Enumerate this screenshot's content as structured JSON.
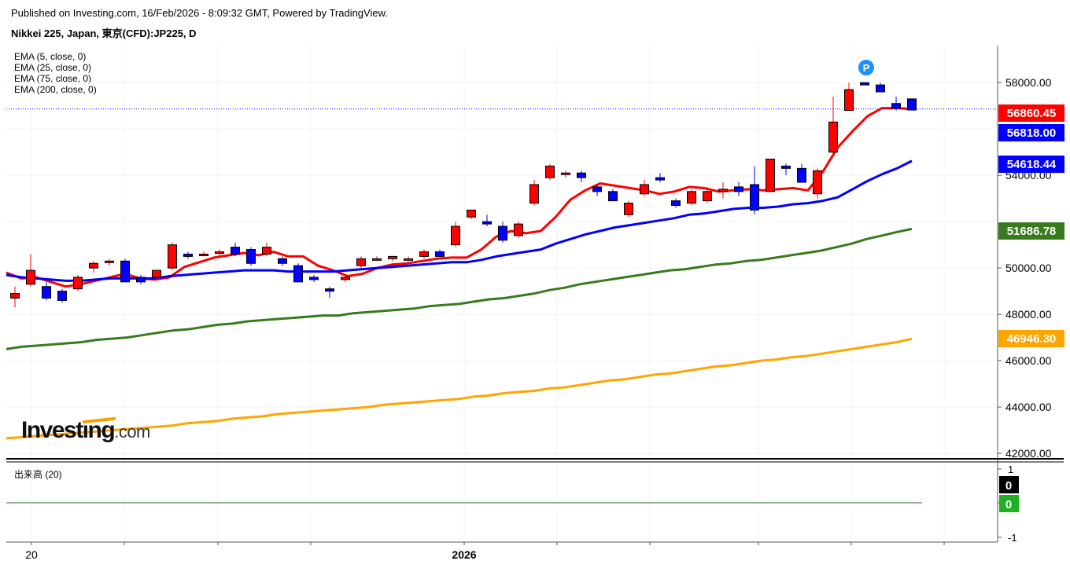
{
  "header": {
    "published": "Published on Investing.com, 16/Feb/2026 - 8:09:32 GMT, Powered by TradingView.",
    "symbol": "Nikkei 225, Japan, 東京(CFD):JP225, D"
  },
  "legend": [
    "EMA (5, close, 0)",
    "EMA (25, close, 0)",
    "EMA (75, close, 0)",
    "EMA (200, close, 0)"
  ],
  "volume_panel": {
    "title": "出来高 (20)",
    "y_ticks": [
      "1",
      "0",
      "-1"
    ],
    "badges": [
      {
        "text": "0",
        "color": "#000000"
      },
      {
        "text": "0",
        "color": "#1fb21f"
      }
    ]
  },
  "logo": {
    "main": "Investing",
    "suffix": ".com"
  },
  "marker": {
    "text": "P",
    "color": "#1e90ff"
  },
  "colors": {
    "up": "#ff0000",
    "down": "#0000ff",
    "ema5": "#ff0000",
    "ema25": "#0000ff",
    "ema75": "#3a7a1e",
    "ema200": "#ffa500",
    "price_line": "#0000ff"
  },
  "chart_data": {
    "type": "candlestick",
    "x_tick_labels": [
      "20",
      "2026"
    ],
    "y_tick_labels": [
      "58000.00",
      "54000.00",
      "50000.00",
      "48000.00",
      "46000.00",
      "44000.00",
      "42000.00"
    ],
    "ylim": [
      41800,
      59600
    ],
    "price_labels": [
      {
        "text": "56860.45",
        "value": 56860.45,
        "color": "#ff0000"
      },
      {
        "text": "56818.00",
        "value": 56818.0,
        "color": "#0000ff"
      },
      {
        "text": "54618.44",
        "value": 54618.44,
        "color": "#0000ff"
      },
      {
        "text": "51686.78",
        "value": 51686.78,
        "color": "#3a7a1e"
      },
      {
        "text": "46946.30",
        "value": 46946.3,
        "color": "#ffa500"
      }
    ],
    "current_price": 56860.45,
    "candles": [
      {
        "o": 48700,
        "h": 49200,
        "l": 48300,
        "c": 48900
      },
      {
        "o": 49300,
        "h": 50600,
        "l": 49200,
        "c": 49900
      },
      {
        "o": 49200,
        "h": 49400,
        "l": 48600,
        "c": 48700
      },
      {
        "o": 49000,
        "h": 49100,
        "l": 48500,
        "c": 48600
      },
      {
        "o": 49100,
        "h": 49700,
        "l": 49000,
        "c": 49600
      },
      {
        "o": 50000,
        "h": 50300,
        "l": 49800,
        "c": 50200
      },
      {
        "o": 50300,
        "h": 50400,
        "l": 50100,
        "c": 50300
      },
      {
        "o": 50300,
        "h": 50400,
        "l": 49400,
        "c": 49400
      },
      {
        "o": 49600,
        "h": 49700,
        "l": 49300,
        "c": 49400
      },
      {
        "o": 49600,
        "h": 49900,
        "l": 49500,
        "c": 49900
      },
      {
        "o": 50000,
        "h": 51100,
        "l": 49900,
        "c": 51000
      },
      {
        "o": 50600,
        "h": 50700,
        "l": 50400,
        "c": 50500
      },
      {
        "o": 50600,
        "h": 50700,
        "l": 50500,
        "c": 50600
      },
      {
        "o": 50700,
        "h": 50800,
        "l": 50500,
        "c": 50700
      },
      {
        "o": 50900,
        "h": 51100,
        "l": 50500,
        "c": 50600
      },
      {
        "o": 50800,
        "h": 50900,
        "l": 50100,
        "c": 50200
      },
      {
        "o": 50600,
        "h": 51100,
        "l": 50500,
        "c": 50900
      },
      {
        "o": 50400,
        "h": 50500,
        "l": 50100,
        "c": 50200
      },
      {
        "o": 50100,
        "h": 50200,
        "l": 49400,
        "c": 49400
      },
      {
        "o": 49600,
        "h": 49700,
        "l": 49400,
        "c": 49500
      },
      {
        "o": 49100,
        "h": 49200,
        "l": 48700,
        "c": 49000
      },
      {
        "o": 49500,
        "h": 49600,
        "l": 49400,
        "c": 49600
      },
      {
        "o": 50100,
        "h": 50500,
        "l": 50000,
        "c": 50400
      },
      {
        "o": 50400,
        "h": 50500,
        "l": 50300,
        "c": 50400
      },
      {
        "o": 50400,
        "h": 50500,
        "l": 50300,
        "c": 50500
      },
      {
        "o": 50400,
        "h": 50500,
        "l": 50300,
        "c": 50400
      },
      {
        "o": 50500,
        "h": 50800,
        "l": 50400,
        "c": 50700
      },
      {
        "o": 50700,
        "h": 50800,
        "l": 50500,
        "c": 50500
      },
      {
        "o": 51000,
        "h": 52000,
        "l": 50900,
        "c": 51800
      },
      {
        "o": 52200,
        "h": 52500,
        "l": 52100,
        "c": 52500
      },
      {
        "o": 52000,
        "h": 52300,
        "l": 51800,
        "c": 51900
      },
      {
        "o": 51800,
        "h": 52000,
        "l": 51100,
        "c": 51200
      },
      {
        "o": 51400,
        "h": 52000,
        "l": 51300,
        "c": 51900
      },
      {
        "o": 52800,
        "h": 53800,
        "l": 52700,
        "c": 53600
      },
      {
        "o": 53900,
        "h": 54500,
        "l": 53800,
        "c": 54400
      },
      {
        "o": 54100,
        "h": 54200,
        "l": 53900,
        "c": 54100
      },
      {
        "o": 54100,
        "h": 54200,
        "l": 53700,
        "c": 53900
      },
      {
        "o": 53500,
        "h": 53600,
        "l": 53100,
        "c": 53300
      },
      {
        "o": 53300,
        "h": 53400,
        "l": 52900,
        "c": 52900
      },
      {
        "o": 52300,
        "h": 52900,
        "l": 52200,
        "c": 52800
      },
      {
        "o": 53200,
        "h": 53800,
        "l": 53100,
        "c": 53600
      },
      {
        "o": 53900,
        "h": 54100,
        "l": 53700,
        "c": 53800
      },
      {
        "o": 52900,
        "h": 53000,
        "l": 52600,
        "c": 52700
      },
      {
        "o": 52800,
        "h": 53400,
        "l": 52700,
        "c": 53300
      },
      {
        "o": 52900,
        "h": 53500,
        "l": 52800,
        "c": 53300
      },
      {
        "o": 53300,
        "h": 53700,
        "l": 53000,
        "c": 53400
      },
      {
        "o": 53500,
        "h": 53700,
        "l": 53100,
        "c": 53300
      },
      {
        "o": 53600,
        "h": 54400,
        "l": 52300,
        "c": 52500
      },
      {
        "o": 53300,
        "h": 54700,
        "l": 53300,
        "c": 54700
      },
      {
        "o": 54400,
        "h": 54500,
        "l": 54000,
        "c": 54300
      },
      {
        "o": 54300,
        "h": 54500,
        "l": 53700,
        "c": 53700
      },
      {
        "o": 53200,
        "h": 54300,
        "l": 53000,
        "c": 54200
      },
      {
        "o": 55000,
        "h": 57400,
        "l": 54900,
        "c": 56300
      },
      {
        "o": 56800,
        "h": 58000,
        "l": 56800,
        "c": 57700
      },
      {
        "o": 58000,
        "h": 58000,
        "l": 57900,
        "c": 57900
      },
      {
        "o": 57900,
        "h": 58000,
        "l": 57600,
        "c": 57600
      },
      {
        "o": 57100,
        "h": 57400,
        "l": 56800,
        "c": 56900
      },
      {
        "o": 57300,
        "h": 57300,
        "l": 56800,
        "c": 56818
      }
    ],
    "series": [
      {
        "name": "EMA (5, close, 0)",
        "color": "#ff0000",
        "values": [
          49800,
          49550,
          49600,
          49400,
          49200,
          49300,
          49450,
          49600,
          49750,
          49550,
          49500,
          49600,
          50050,
          50250,
          50450,
          50550,
          50650,
          50550,
          50700,
          50500,
          50500,
          50100,
          49900,
          49650,
          49750,
          50000,
          50150,
          50200,
          50300,
          50400,
          50450,
          50450,
          50800,
          51350,
          51600,
          51500,
          51600,
          52200,
          52950,
          53350,
          53650,
          53550,
          53450,
          53350,
          53200,
          53300,
          53500,
          53450,
          53300,
          53350,
          53400,
          53350,
          53400,
          53450,
          53350,
          54150,
          55200,
          55900,
          56550,
          56900,
          56900,
          56860
        ]
      },
      {
        "name": "EMA (25, close, 0)",
        "color": "#0000ff",
        "values": [
          49700,
          49600,
          49550,
          49500,
          49450,
          49450,
          49500,
          49550,
          49550,
          49550,
          49550,
          49650,
          49700,
          49750,
          49800,
          49850,
          49900,
          49900,
          49900,
          49850,
          49850,
          49850,
          49850,
          49900,
          49950,
          50000,
          50050,
          50100,
          50150,
          50200,
          50250,
          50250,
          50350,
          50500,
          50600,
          50700,
          50800,
          51050,
          51250,
          51450,
          51600,
          51750,
          51850,
          51950,
          52050,
          52150,
          52300,
          52350,
          52450,
          52550,
          52600,
          52600,
          52650,
          52750,
          52800,
          52900,
          53050,
          53400,
          53750,
          54050,
          54300,
          54618
        ]
      },
      {
        "name": "EMA (75, close, 0)",
        "color": "#3a7a1e",
        "values": [
          46500,
          46600,
          46650,
          46700,
          46750,
          46800,
          46900,
          46950,
          47000,
          47100,
          47200,
          47300,
          47350,
          47450,
          47550,
          47600,
          47700,
          47750,
          47800,
          47850,
          47900,
          47950,
          47950,
          48050,
          48100,
          48150,
          48200,
          48250,
          48350,
          48400,
          48450,
          48550,
          48650,
          48700,
          48800,
          48900,
          49050,
          49150,
          49300,
          49400,
          49500,
          49600,
          49700,
          49800,
          49900,
          49950,
          50050,
          50150,
          50200,
          50300,
          50350,
          50450,
          50550,
          50650,
          50750,
          50900,
          51050,
          51250,
          51400,
          51550,
          51687
        ]
      },
      {
        "name": "EMA (200, close, 0)",
        "color": "#ffa500",
        "values": [
          42650,
          42700,
          42750,
          42800,
          42850,
          42900,
          42950,
          43000,
          43050,
          43100,
          43150,
          43200,
          43300,
          43350,
          43400,
          43500,
          43550,
          43600,
          43700,
          43750,
          43800,
          43850,
          43900,
          43950,
          44000,
          44100,
          44150,
          44200,
          44250,
          44300,
          44350,
          44450,
          44500,
          44600,
          44650,
          44700,
          44800,
          44850,
          44950,
          45050,
          45150,
          45200,
          45300,
          45400,
          45450,
          45550,
          45650,
          45750,
          45800,
          45900,
          46000,
          46050,
          46150,
          46200,
          46300,
          46400,
          46500,
          46600,
          46700,
          46800,
          46946
        ]
      }
    ]
  }
}
